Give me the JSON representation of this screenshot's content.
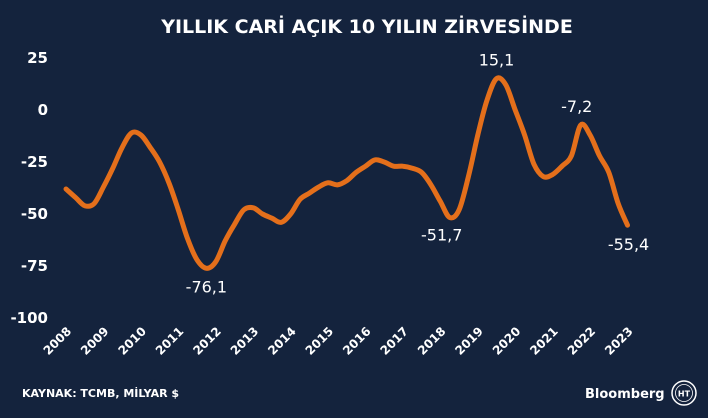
{
  "chart_data": {
    "type": "line",
    "title": "YILLIK CARİ AÇIK 10 YILIN ZİRVESİNDE",
    "xlabel": "",
    "ylabel": "",
    "ylim": [
      -100,
      25
    ],
    "yticks": [
      25,
      0,
      -25,
      -50,
      -75,
      -100
    ],
    "xticks": [
      "2008",
      "2009",
      "2010",
      "2011",
      "2012",
      "2013",
      "2014",
      "2015",
      "2016",
      "2017",
      "2018",
      "2019",
      "2020",
      "2021",
      "2022",
      "2023"
    ],
    "xlim": [
      2008,
      2023.6
    ],
    "grid": false,
    "legend": "none",
    "series": [
      {
        "color": "#e46f1b",
        "points": [
          [
            2008.0,
            -38
          ],
          [
            2008.25,
            -42
          ],
          [
            2008.5,
            -46
          ],
          [
            2008.75,
            -45
          ],
          [
            2009.0,
            -37
          ],
          [
            2009.25,
            -28
          ],
          [
            2009.5,
            -18
          ],
          [
            2009.75,
            -11
          ],
          [
            2010.0,
            -12
          ],
          [
            2010.25,
            -18
          ],
          [
            2010.5,
            -25
          ],
          [
            2010.75,
            -35
          ],
          [
            2011.0,
            -48
          ],
          [
            2011.25,
            -62
          ],
          [
            2011.5,
            -72
          ],
          [
            2011.75,
            -76.1
          ],
          [
            2012.0,
            -73
          ],
          [
            2012.25,
            -63
          ],
          [
            2012.5,
            -55
          ],
          [
            2012.75,
            -48
          ],
          [
            2013.0,
            -47
          ],
          [
            2013.25,
            -50
          ],
          [
            2013.5,
            -52
          ],
          [
            2013.75,
            -54
          ],
          [
            2014.0,
            -50
          ],
          [
            2014.25,
            -43
          ],
          [
            2014.5,
            -40
          ],
          [
            2014.75,
            -37
          ],
          [
            2015.0,
            -35
          ],
          [
            2015.25,
            -36
          ],
          [
            2015.5,
            -34
          ],
          [
            2015.75,
            -30
          ],
          [
            2016.0,
            -27
          ],
          [
            2016.25,
            -24
          ],
          [
            2016.5,
            -25
          ],
          [
            2016.75,
            -27
          ],
          [
            2017.0,
            -27
          ],
          [
            2017.25,
            -28
          ],
          [
            2017.5,
            -30
          ],
          [
            2017.75,
            -36
          ],
          [
            2018.0,
            -44
          ],
          [
            2018.25,
            -51.7
          ],
          [
            2018.5,
            -48
          ],
          [
            2018.75,
            -32
          ],
          [
            2019.0,
            -12
          ],
          [
            2019.25,
            5
          ],
          [
            2019.5,
            15.1
          ],
          [
            2019.75,
            12
          ],
          [
            2020.0,
            0
          ],
          [
            2020.25,
            -12
          ],
          [
            2020.5,
            -26
          ],
          [
            2020.75,
            -32
          ],
          [
            2021.0,
            -31
          ],
          [
            2021.25,
            -27
          ],
          [
            2021.5,
            -22
          ],
          [
            2021.75,
            -7.2
          ],
          [
            2022.0,
            -12
          ],
          [
            2022.25,
            -22
          ],
          [
            2022.5,
            -30
          ],
          [
            2022.75,
            -45
          ],
          [
            2023.0,
            -55.4
          ]
        ]
      }
    ],
    "annotations": [
      {
        "label": "15,1",
        "x": 2019.5,
        "y": 15.1
      },
      {
        "label": "-7,2",
        "x": 2021.75,
        "y": -7.2
      },
      {
        "label": "-76,1",
        "x": 2011.75,
        "y": -76.1
      },
      {
        "label": "-51,7",
        "x": 2018.25,
        "y": -51.7
      },
      {
        "label": "-55,4",
        "x": 2023.0,
        "y": -55.4
      }
    ]
  },
  "footer": {
    "source": "KAYNAK: TCMB, MİLYAR $",
    "brand": "Bloomberg",
    "logo_letters": "HT"
  }
}
